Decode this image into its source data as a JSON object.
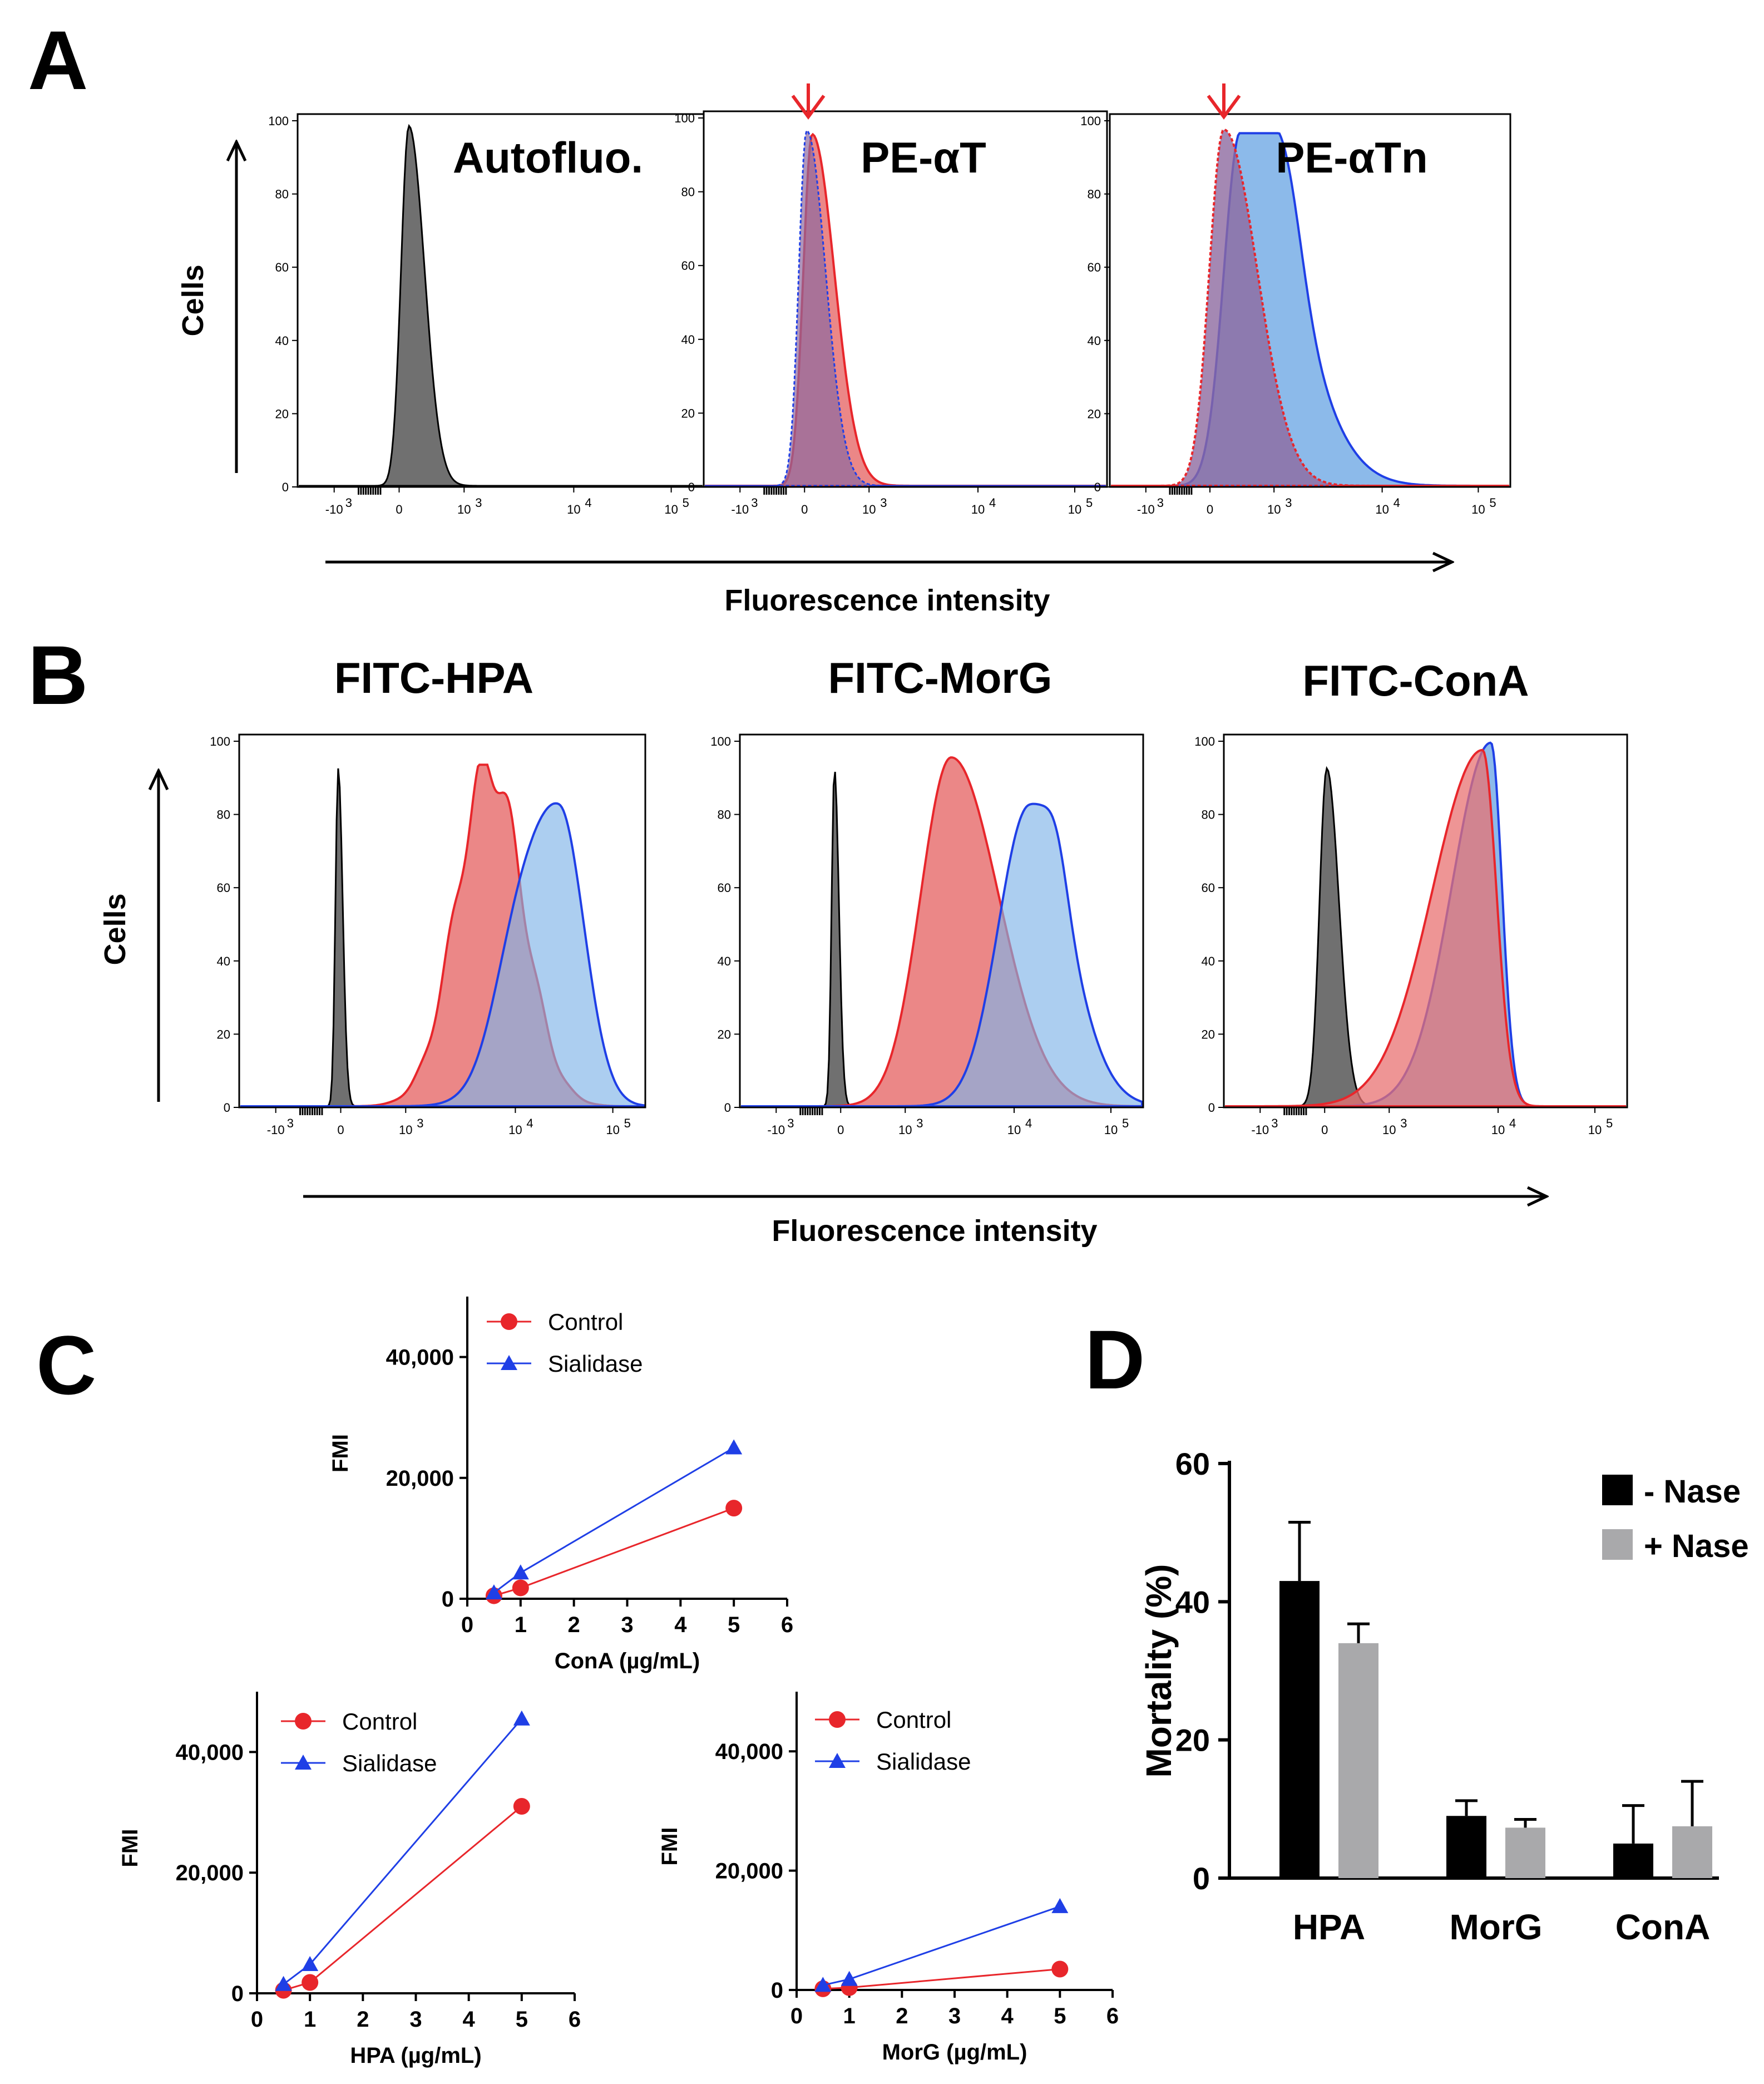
{
  "panels": {
    "A": "A",
    "B": "B",
    "C": "C",
    "D": "D"
  },
  "colors": {
    "control": "#e8262b",
    "sialidase": "#1f3fe6",
    "red_fill": "#e87272",
    "blue_fill": "#7fb3e8",
    "overlap_fill": "#8d6aa0",
    "grey_fill": "#707070",
    "black_bar": "#000000",
    "grey_bar": "#a9a9ab"
  },
  "flow": {
    "y_label": "Cells",
    "x_label": "Fluorescence intensity",
    "y_ticks": [
      "100",
      "80",
      "60",
      "40",
      "20",
      "0"
    ],
    "x_ticks": {
      "neg_base": "-10",
      "neg_exp": "3",
      "zero": "0",
      "t3_base": "10",
      "t3_exp": "3",
      "t4_base": "10",
      "t4_exp": "4",
      "t5_base": "10",
      "t5_exp": "5"
    },
    "A_titles": [
      "Autofluo.",
      "PE-αT",
      "PE-αTn"
    ],
    "B_titles": [
      "FITC-HPA",
      "FITC-MorG",
      "FITC-ConA"
    ]
  },
  "chart_data": [
    {
      "type": "line",
      "title": "",
      "xlabel": "ConA (µg/mL)",
      "ylabel": "FMI",
      "x": [
        0.5,
        1,
        5
      ],
      "xlim": [
        0,
        6
      ],
      "ylim": [
        0,
        50000
      ],
      "x_ticks": [
        "0",
        "1",
        "2",
        "3",
        "4",
        "5",
        "6"
      ],
      "y_ticks": [
        "0",
        "20,000",
        "40,000"
      ],
      "series": [
        {
          "name": "Control",
          "values": [
            500,
            1800,
            15000
          ]
        },
        {
          "name": "Sialidase",
          "values": [
            1000,
            4300,
            25000
          ]
        }
      ]
    },
    {
      "type": "line",
      "title": "",
      "xlabel": "HPA (µg/mL)",
      "ylabel": "FMI",
      "x": [
        0.5,
        1,
        5
      ],
      "xlim": [
        0,
        6
      ],
      "ylim": [
        0,
        50000
      ],
      "x_ticks": [
        "0",
        "1",
        "2",
        "3",
        "4",
        "5",
        "6"
      ],
      "y_ticks": [
        "0",
        "20,000",
        "40,000"
      ],
      "series": [
        {
          "name": "Control",
          "values": [
            500,
            1800,
            31000
          ]
        },
        {
          "name": "Sialidase",
          "values": [
            1500,
            4800,
            45500
          ]
        }
      ]
    },
    {
      "type": "line",
      "title": "",
      "xlabel": "MorG (µg/mL)",
      "ylabel": "FMI",
      "x": [
        0.5,
        1,
        5
      ],
      "xlim": [
        0,
        6
      ],
      "ylim": [
        0,
        50000
      ],
      "x_ticks": [
        "0",
        "1",
        "2",
        "3",
        "4",
        "5",
        "6"
      ],
      "y_ticks": [
        "0",
        "20,000",
        "40,000"
      ],
      "series": [
        {
          "name": "Control",
          "values": [
            200,
            400,
            3500
          ]
        },
        {
          "name": "Sialidase",
          "values": [
            800,
            1800,
            14000
          ]
        }
      ]
    },
    {
      "type": "bar",
      "title": "",
      "xlabel": "",
      "ylabel": "Mortality (%)",
      "categories": [
        "HPA",
        "MorG",
        "ConA"
      ],
      "ylim": [
        0,
        60
      ],
      "y_ticks": [
        "0",
        "20",
        "40",
        "60"
      ],
      "series": [
        {
          "name": "- Nase",
          "values": [
            43,
            9,
            5
          ],
          "errors": [
            8.5,
            2.2,
            5.5
          ]
        },
        {
          "name": "+ Nase",
          "values": [
            34,
            7.3,
            7.5
          ],
          "errors": [
            2.8,
            1.2,
            6.5
          ]
        }
      ]
    }
  ]
}
